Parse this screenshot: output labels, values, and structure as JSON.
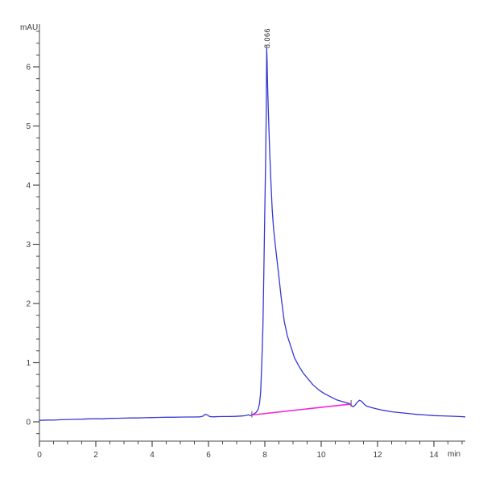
{
  "chart_data": {
    "type": "line",
    "title": "",
    "ylabel": "mAU",
    "xlabel": "min",
    "xlim": [
      0,
      15.14
    ],
    "ylim": [
      -0.33,
      6.73
    ],
    "grid": false,
    "legend": "none",
    "background": "#ffffff",
    "axis_color": "#4a4a4a",
    "tick_label_color": "#3b3b3b",
    "x_major_ticks": [
      0,
      2,
      4,
      6,
      8,
      10,
      12,
      14
    ],
    "x_minor_step": 0.5,
    "y_major_ticks": [
      0,
      1,
      2,
      3,
      4,
      5,
      6
    ],
    "y_minor_step": 0.2,
    "peak_labels": [
      {
        "text": "8.066",
        "x": 8.066,
        "y": 6.31
      }
    ],
    "integration_marks": [
      {
        "x": 7.54,
        "y": 0.115
      },
      {
        "x": 11.06,
        "y": 0.3
      }
    ],
    "series": [
      {
        "name": "detector-signal",
        "color": "#3538d4",
        "width": 1.3,
        "points": [
          [
            0.0,
            0.025
          ],
          [
            0.25,
            0.03
          ],
          [
            0.5,
            0.028
          ],
          [
            0.75,
            0.035
          ],
          [
            1.0,
            0.04
          ],
          [
            1.25,
            0.042
          ],
          [
            1.5,
            0.045
          ],
          [
            1.75,
            0.05
          ],
          [
            2.0,
            0.053
          ],
          [
            2.25,
            0.05
          ],
          [
            2.5,
            0.058
          ],
          [
            2.75,
            0.06
          ],
          [
            3.0,
            0.062
          ],
          [
            3.25,
            0.065
          ],
          [
            3.5,
            0.065
          ],
          [
            3.75,
            0.07
          ],
          [
            4.0,
            0.072
          ],
          [
            4.25,
            0.075
          ],
          [
            4.5,
            0.078
          ],
          [
            4.75,
            0.078
          ],
          [
            5.0,
            0.08
          ],
          [
            5.25,
            0.082
          ],
          [
            5.5,
            0.082
          ],
          [
            5.7,
            0.085
          ],
          [
            5.8,
            0.095
          ],
          [
            5.88,
            0.125
          ],
          [
            5.96,
            0.115
          ],
          [
            6.04,
            0.09
          ],
          [
            6.15,
            0.085
          ],
          [
            6.35,
            0.088
          ],
          [
            6.55,
            0.09
          ],
          [
            6.75,
            0.09
          ],
          [
            6.95,
            0.092
          ],
          [
            7.15,
            0.098
          ],
          [
            7.3,
            0.103
          ],
          [
            7.42,
            0.118
          ],
          [
            7.48,
            0.105
          ],
          [
            7.54,
            0.115
          ],
          [
            7.62,
            0.135
          ],
          [
            7.7,
            0.165
          ],
          [
            7.76,
            0.21
          ],
          [
            7.81,
            0.3
          ],
          [
            7.85,
            0.5
          ],
          [
            7.89,
            0.95
          ],
          [
            7.93,
            1.6
          ],
          [
            7.97,
            2.65
          ],
          [
            8.0,
            3.6
          ],
          [
            8.03,
            4.45
          ],
          [
            8.05,
            5.3
          ],
          [
            8.06,
            5.95
          ],
          [
            8.066,
            6.31
          ],
          [
            8.08,
            6.1
          ],
          [
            8.1,
            5.65
          ],
          [
            8.13,
            5.15
          ],
          [
            8.17,
            4.6
          ],
          [
            8.21,
            4.1
          ],
          [
            8.26,
            3.6
          ],
          [
            8.31,
            3.25
          ],
          [
            8.37,
            3.0
          ],
          [
            8.44,
            2.7
          ],
          [
            8.5,
            2.45
          ],
          [
            8.58,
            2.1
          ],
          [
            8.69,
            1.7
          ],
          [
            8.8,
            1.45
          ],
          [
            8.91,
            1.29
          ],
          [
            9.05,
            1.08
          ],
          [
            9.2,
            0.95
          ],
          [
            9.35,
            0.83
          ],
          [
            9.49,
            0.75
          ],
          [
            9.7,
            0.63
          ],
          [
            9.91,
            0.54
          ],
          [
            10.1,
            0.48
          ],
          [
            10.34,
            0.42
          ],
          [
            10.55,
            0.37
          ],
          [
            10.77,
            0.34
          ],
          [
            11.0,
            0.31
          ],
          [
            11.08,
            0.27
          ],
          [
            11.13,
            0.255
          ],
          [
            11.2,
            0.28
          ],
          [
            11.28,
            0.33
          ],
          [
            11.36,
            0.365
          ],
          [
            11.44,
            0.345
          ],
          [
            11.52,
            0.3
          ],
          [
            11.6,
            0.27
          ],
          [
            11.75,
            0.245
          ],
          [
            11.95,
            0.22
          ],
          [
            12.2,
            0.195
          ],
          [
            12.5,
            0.17
          ],
          [
            12.8,
            0.155
          ],
          [
            13.1,
            0.14
          ],
          [
            13.4,
            0.125
          ],
          [
            13.7,
            0.115
          ],
          [
            14.0,
            0.105
          ],
          [
            14.3,
            0.1
          ],
          [
            14.6,
            0.095
          ],
          [
            14.9,
            0.09
          ],
          [
            15.1,
            0.085
          ]
        ]
      },
      {
        "name": "integration-baseline",
        "color": "#f622d8",
        "width": 1.6,
        "points": [
          [
            7.54,
            0.115
          ],
          [
            11.06,
            0.3
          ]
        ]
      }
    ]
  }
}
